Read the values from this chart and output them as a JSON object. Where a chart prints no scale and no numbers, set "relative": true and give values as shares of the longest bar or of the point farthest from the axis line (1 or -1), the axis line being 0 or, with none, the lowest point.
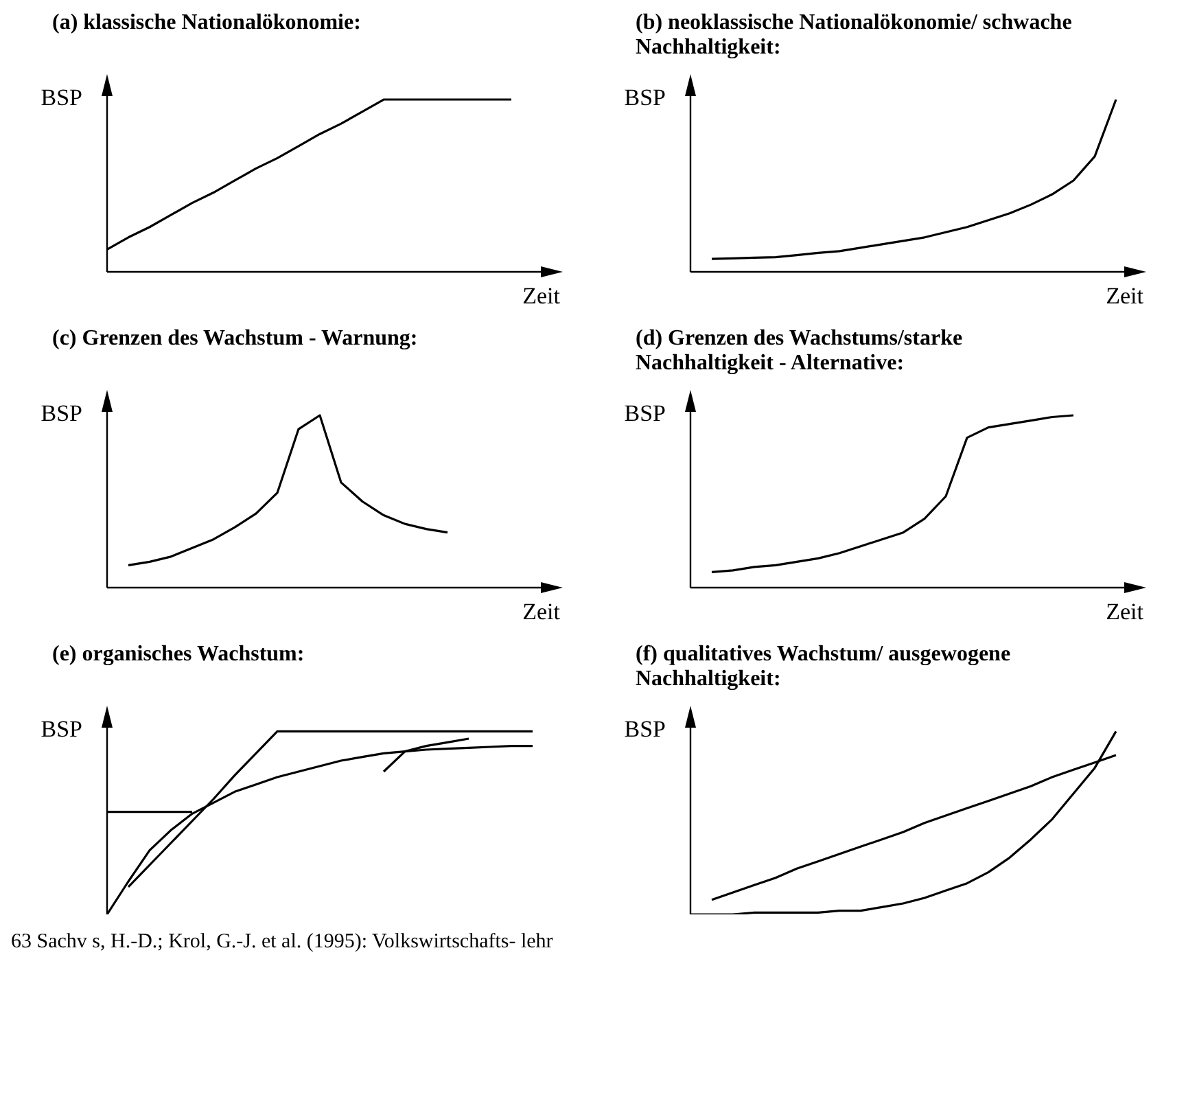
{
  "chart_data": [
    {
      "type": "line",
      "title": "(a)  klassische Nationalökonomie:",
      "xlabel": "Zeit",
      "ylabel": "BSP",
      "relative": true,
      "grid": false,
      "legend": false,
      "marker": "none",
      "line_style": "solid",
      "categories": [
        null,
        null,
        null,
        null,
        null,
        null,
        null,
        null,
        null,
        null,
        null,
        null,
        null,
        null,
        null,
        null,
        null,
        null,
        null,
        null,
        null
      ],
      "series": [
        {
          "color": "#000000",
          "values": [
            0.13,
            0.2,
            0.26,
            0.33,
            0.4,
            0.46,
            0.53,
            0.6,
            0.66,
            0.73,
            0.8,
            0.86,
            0.93,
            1,
            1,
            1,
            1,
            1,
            1,
            1,
            null
          ]
        }
      ]
    },
    {
      "type": "line",
      "title": "(b)  neoklassische Nationalökonomie/ schwache Nachhaltigkeit:",
      "xlabel": "Zeit",
      "ylabel": "BSP",
      "relative": true,
      "grid": false,
      "legend": false,
      "marker": "none",
      "line_style": "solid",
      "categories": [
        null,
        null,
        null,
        null,
        null,
        null,
        null,
        null,
        null,
        null,
        null,
        null,
        null,
        null,
        null,
        null,
        null,
        null,
        null,
        null,
        null
      ],
      "series": [
        {
          "color": "#000000",
          "values": [
            null,
            0.075,
            0.078,
            0.082,
            0.085,
            0.097,
            0.11,
            0.12,
            0.14,
            0.16,
            0.18,
            0.2,
            0.23,
            0.26,
            0.3,
            0.34,
            0.39,
            0.45,
            0.53,
            0.67,
            1
          ]
        }
      ]
    },
    {
      "type": "line",
      "title": "(c) Grenzen des Wachstum - Warnung:",
      "xlabel": "Zeit",
      "ylabel": "BSP",
      "relative": true,
      "grid": false,
      "legend": false,
      "marker": "none",
      "line_style": "solid",
      "categories": [
        null,
        null,
        null,
        null,
        null,
        null,
        null,
        null,
        null,
        null,
        null,
        null,
        null,
        null,
        null,
        null,
        null,
        null,
        null,
        null,
        null
      ],
      "series": [
        {
          "color": "#000000",
          "values": [
            null,
            0.13,
            0.15,
            0.18,
            0.23,
            0.28,
            0.35,
            0.43,
            0.55,
            0.92,
            1,
            0.61,
            0.5,
            0.42,
            0.37,
            0.34,
            0.32,
            null,
            null,
            null,
            null
          ]
        }
      ]
    },
    {
      "type": "line",
      "title": "(d)  Grenzen des Wachstums/starke Nachhaltigkeit - Alternative:",
      "xlabel": "Zeit",
      "ylabel": "BSP",
      "relative": true,
      "grid": false,
      "legend": false,
      "marker": "none",
      "line_style": "solid",
      "categories": [
        null,
        null,
        null,
        null,
        null,
        null,
        null,
        null,
        null,
        null,
        null,
        null,
        null,
        null,
        null,
        null,
        null,
        null,
        null,
        null,
        null
      ],
      "series": [
        {
          "color": "#000000",
          "values": [
            null,
            0.09,
            0.1,
            0.12,
            0.13,
            0.15,
            0.17,
            0.2,
            0.24,
            0.28,
            0.32,
            0.4,
            0.53,
            0.87,
            0.93,
            0.95,
            0.97,
            0.99,
            1,
            null,
            null
          ]
        }
      ]
    },
    {
      "type": "line",
      "title": "(e)  organisches Wachstum:",
      "ylabel": "BSP",
      "relative": true,
      "grid": false,
      "legend": false,
      "marker": "none",
      "line_style": "solid",
      "annotations": [
        "63",
        "Sachv",
        "s, H.-D.; Krol, G.-J. et al. (1995): Volkswirtschafts-",
        "lehr"
      ],
      "categories": [
        null,
        null,
        null,
        null,
        null,
        null,
        null,
        null,
        null,
        null,
        null,
        null,
        null,
        null,
        null,
        null,
        null,
        null,
        null,
        null,
        null
      ],
      "series": [
        {
          "color": "#000000",
          "values": [
            0.56,
            0.56,
            0.56,
            0.56,
            0.56,
            null,
            null,
            null,
            null,
            null,
            null,
            null,
            null,
            null,
            null,
            null,
            null,
            null,
            null,
            null,
            null
          ]
        },
        {
          "color": "#000000",
          "values": [
            null,
            0.15,
            0.27,
            0.39,
            0.51,
            0.63,
            0.76,
            0.88,
            1,
            1,
            1,
            1,
            1,
            1,
            1,
            1,
            1,
            1,
            1,
            1,
            1
          ]
        },
        {
          "color": "#000000",
          "values": [
            0,
            0.18,
            0.35,
            0.46,
            0.55,
            0.61,
            0.67,
            0.71,
            0.75,
            0.78,
            0.81,
            0.84,
            0.86,
            0.88,
            0.89,
            0.9,
            0.905,
            0.91,
            0.915,
            0.92,
            0.92
          ]
        },
        {
          "color": "#000000",
          "values": [
            null,
            null,
            null,
            null,
            null,
            null,
            null,
            null,
            null,
            null,
            null,
            null,
            null,
            0.78,
            0.89,
            0.92,
            0.94,
            0.96,
            null,
            null,
            null
          ]
        }
      ]
    },
    {
      "type": "line",
      "title": "(f)  qualitatives Wachstum/ ausgewogene Nachhaltigkeit:",
      "ylabel": "BSP",
      "relative": true,
      "grid": false,
      "legend": false,
      "marker": "none",
      "line_style": "solid",
      "categories": [
        null,
        null,
        null,
        null,
        null,
        null,
        null,
        null,
        null,
        null,
        null,
        null,
        null,
        null,
        null,
        null,
        null,
        null,
        null,
        null,
        null
      ],
      "series": [
        {
          "color": "#000000",
          "values": [
            null,
            0.08,
            0.12,
            0.16,
            0.2,
            0.25,
            0.29,
            0.33,
            0.37,
            0.41,
            0.45,
            0.5,
            0.54,
            0.58,
            0.62,
            0.66,
            0.7,
            0.75,
            0.79,
            0.83,
            0.87
          ]
        },
        {
          "color": "#000000",
          "values": [
            0,
            0,
            0,
            0.01,
            0.01,
            0.01,
            0.01,
            0.02,
            0.02,
            0.04,
            0.06,
            0.09,
            0.13,
            0.17,
            0.23,
            0.31,
            0.41,
            0.52,
            0.66,
            0.8,
            1
          ]
        }
      ]
    }
  ]
}
